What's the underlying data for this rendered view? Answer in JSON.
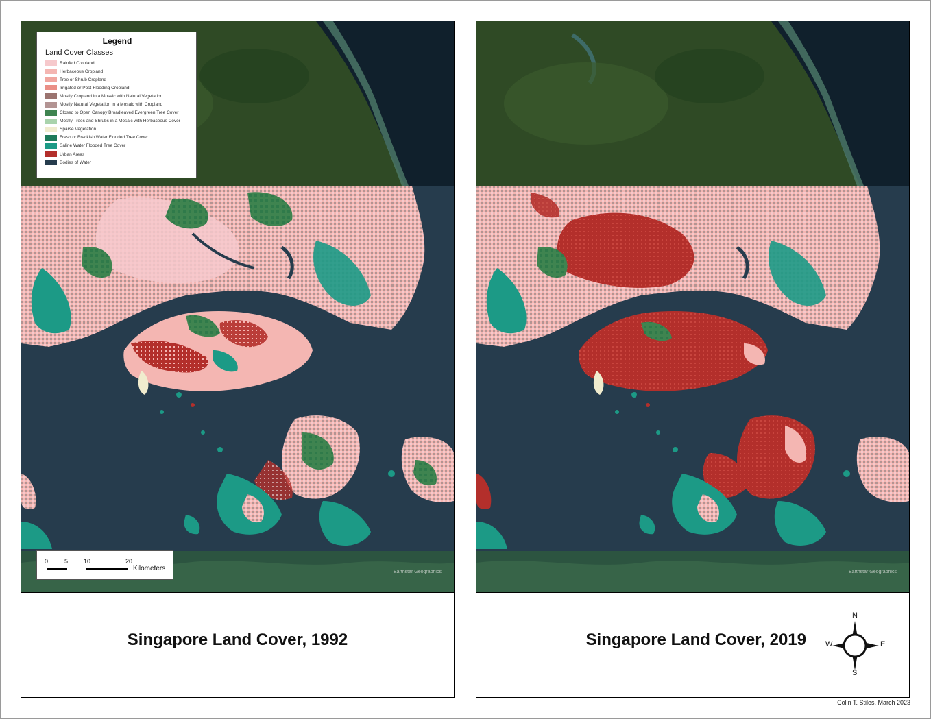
{
  "legend": {
    "title": "Legend",
    "subtitle": "Land Cover Classes",
    "items": [
      {
        "label": "Rainfed Cropland",
        "color": "#f6c9cc"
      },
      {
        "label": "Herbaceous Cropland",
        "color": "#f4b6b2"
      },
      {
        "label": "Tree or Shrub Cropland",
        "color": "#f0a69f"
      },
      {
        "label": "Irrigated or Post-Flooding Cropland",
        "color": "#ea8f86"
      },
      {
        "label": "Mostly Cropland in a Mosaic with Natural Vegetation",
        "color": "#9b7470"
      },
      {
        "label": "Mostly Natural Vegetation in a Mosaic with Cropland",
        "color": "#b39493"
      },
      {
        "label": "Closed to Open Canopy Broadleaved Evergreen Tree Cover",
        "color": "#3f8450"
      },
      {
        "label": "Mostly Trees and Shrubs in a Mosaic with Herbaceous Cover",
        "color": "#a9d3ac"
      },
      {
        "label": "Sparse Vegetation",
        "color": "#f0ecce"
      },
      {
        "label": "Fresh or Brackish Water Flooded Tree Cover",
        "color": "#1d7a5a"
      },
      {
        "label": "Saline Water Flooded Tree Cover",
        "color": "#1c9a86"
      },
      {
        "label": "Urban Areas",
        "color": "#b32f2b"
      },
      {
        "label": "Bodies of Water",
        "color": "#263c4d"
      }
    ]
  },
  "scalebar": {
    "ticks": [
      "0",
      "5",
      "10",
      "20"
    ],
    "unit": "Kilometers"
  },
  "maps": {
    "left": {
      "title": "Singapore Land Cover, 1992",
      "attribution": "Earthstar Geographics"
    },
    "right": {
      "title": "Singapore Land Cover, 2019",
      "attribution": "Earthstar Geographics"
    }
  },
  "compass": {
    "n": "N",
    "e": "E",
    "s": "S",
    "w": "W"
  },
  "credit": "Colin T. Stiles, March 2023"
}
